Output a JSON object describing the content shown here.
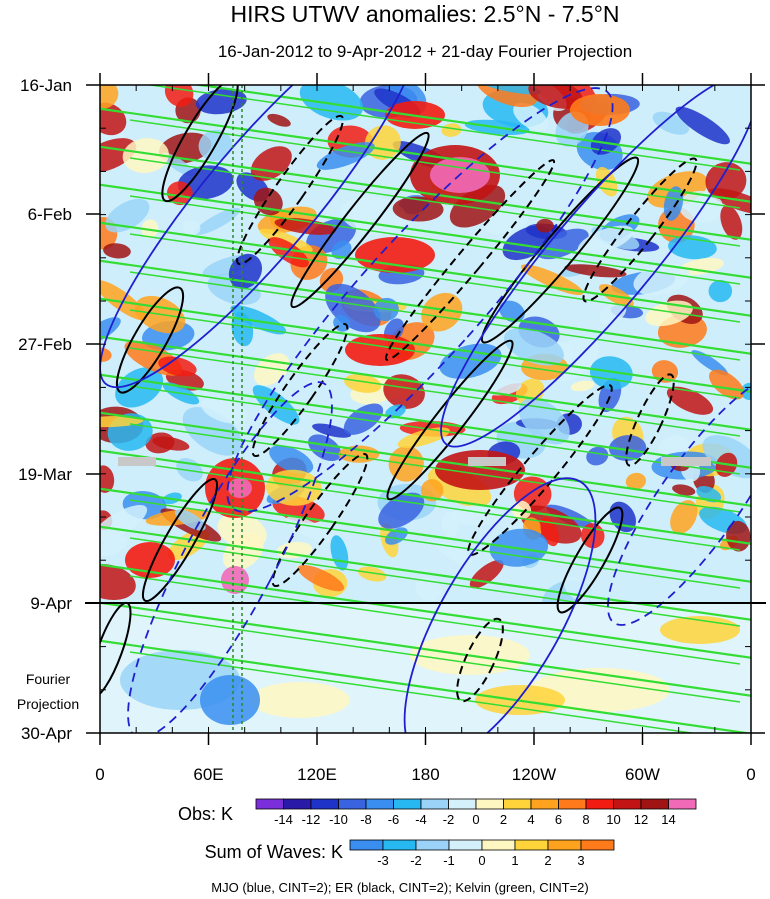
{
  "chart_data": {
    "type": "heatmap",
    "title": "HIRS UTWV anomalies: 2.5°N - 7.5°N",
    "subtitle": "16-Jan-2012 to 9-Apr-2012 + 21-day Fourier Projection",
    "y_ticks": [
      "16-Jan",
      "6-Feb",
      "27-Feb",
      "19-Mar",
      "9-Apr",
      "30-Apr"
    ],
    "x_ticks": [
      "0",
      "60E",
      "120E",
      "180",
      "120W",
      "60W",
      "0"
    ],
    "projection_label": [
      "Fourier",
      "Projection"
    ],
    "obs_legend": {
      "label": "Obs: K",
      "levels": [
        -14,
        -12,
        -10,
        -8,
        -6,
        -4,
        -2,
        0,
        2,
        4,
        6,
        8,
        10,
        12,
        14
      ],
      "colors": [
        "#7b2fdb",
        "#2a1aa8",
        "#1f33c9",
        "#3a63e0",
        "#3a8ef0",
        "#27b8f2",
        "#9ad3f7",
        "#d4f1fb",
        "#fff7c2",
        "#ffd43a",
        "#ffa31f",
        "#ff7a1a",
        "#f21c12",
        "#c21414",
        "#a01414",
        "#f06ab8"
      ]
    },
    "waves_legend": {
      "label": "Sum of Waves: K",
      "levels": [
        -3,
        -2,
        -1,
        0,
        1,
        2,
        3
      ],
      "colors": [
        "#3a8ef0",
        "#27b8f2",
        "#9ad3f7",
        "#d4f1fb",
        "#fff7c2",
        "#ffd43a",
        "#ffa31f",
        "#ff7a1a"
      ]
    },
    "footer": "MJO (blue, CINT=2); ER (black, CINT=2); Kelvin (green, CINT=2)",
    "series_colors": {
      "mjo": "#1f1fd0",
      "er": "#000000",
      "kelvin": "#33dd33"
    }
  }
}
